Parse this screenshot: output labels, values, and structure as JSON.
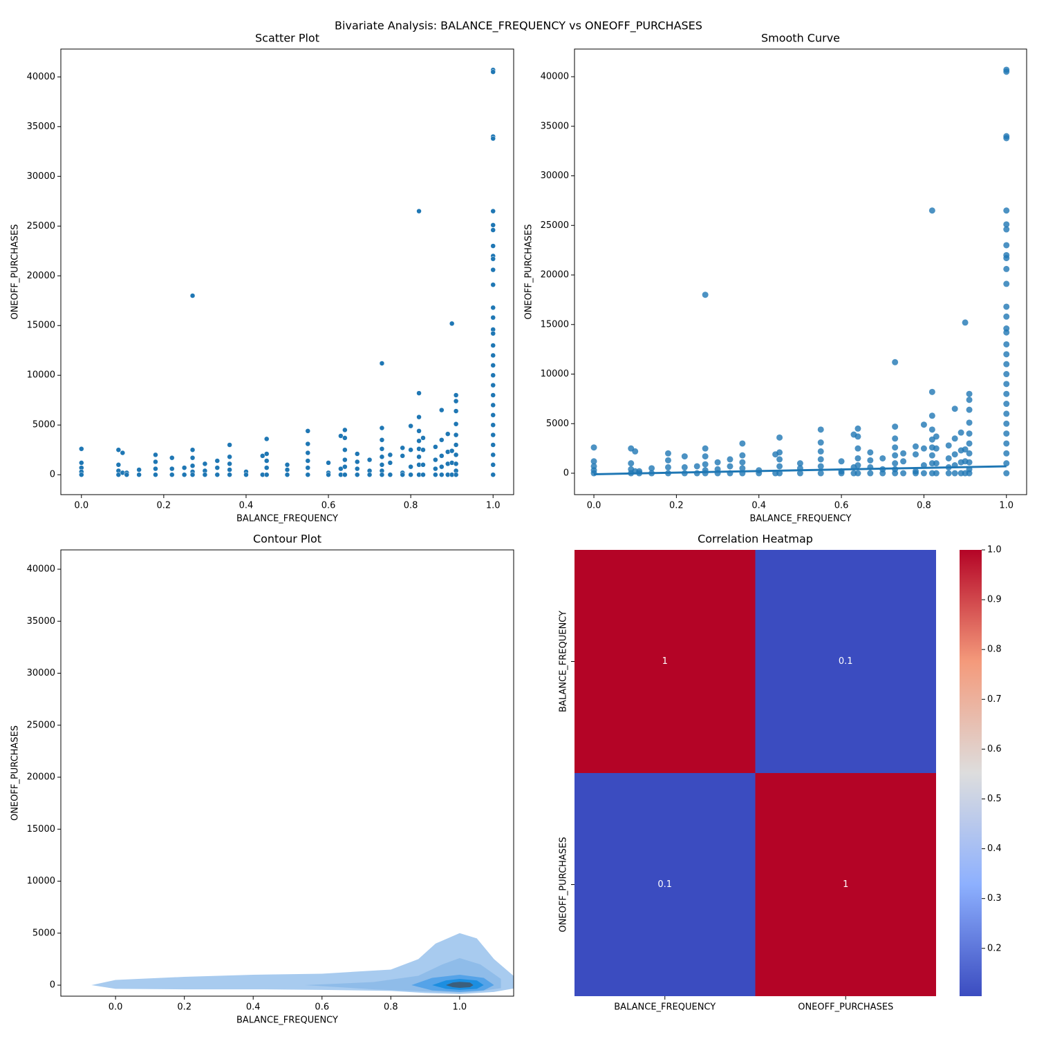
{
  "title": "Bivariate Analysis: BALANCE_FREQUENCY vs ONEOFF_PURCHASES",
  "chart_data": [
    {
      "type": "scatter",
      "title": "Scatter Plot",
      "x_label": "BALANCE_FREQUENCY",
      "y_label": "ONEOFF_PURCHASES",
      "xlim": [
        -0.05,
        1.05
      ],
      "ylim": [
        -2000,
        42800
      ],
      "xticks": [
        {
          "value": 0,
          "label": "0.0"
        },
        0.2,
        0.4,
        0.6,
        0.8,
        {
          "value": 1,
          "label": "1.0"
        }
      ],
      "yticks": [
        0,
        5000,
        10000,
        15000,
        20000,
        25000,
        30000,
        35000,
        40000
      ],
      "series": [
        {
          "kind": "scatter",
          "color": "#1f77b4",
          "x": [
            0,
            0,
            0,
            0,
            0,
            0.09,
            0.09,
            0.09,
            0.09,
            0.1,
            0.1,
            0.11,
            0.11,
            0.14,
            0.14,
            0.18,
            0.18,
            0.18,
            0.18,
            0.22,
            0.22,
            0.22,
            0.25,
            0.25,
            0.27,
            0.27,
            0.27,
            0.27,
            0.27,
            0.27,
            0.3,
            0.3,
            0.3,
            0.33,
            0.33,
            0.33,
            0.36,
            0.36,
            0.36,
            0.36,
            0.36,
            0.4,
            0.4,
            0.44,
            0.44,
            0.45,
            0.45,
            0.45,
            0.45,
            0.45,
            0.5,
            0.5,
            0.5,
            0.55,
            0.55,
            0.55,
            0.55,
            0.55,
            0.55,
            0.6,
            0.6,
            0.6,
            0.63,
            0.63,
            0.63,
            0.64,
            0.64,
            0.64,
            0.64,
            0.64,
            0.64,
            0.67,
            0.67,
            0.67,
            0.67,
            0.7,
            0.7,
            0.7,
            0.73,
            0.73,
            0.73,
            0.73,
            0.73,
            0.73,
            0.73,
            0.73,
            0.75,
            0.75,
            0.75,
            0.78,
            0.78,
            0.78,
            0.78,
            0.8,
            0.8,
            0.8,
            0.8,
            0.82,
            0.82,
            0.82,
            0.82,
            0.82,
            0.82,
            0.82,
            0.82,
            0.82,
            0.83,
            0.83,
            0.83,
            0.83,
            0.86,
            0.86,
            0.86,
            0.86,
            0.875,
            0.875,
            0.875,
            0.875,
            0.875,
            0.89,
            0.89,
            0.89,
            0.89,
            0.9,
            0.9,
            0.9,
            0.9,
            0.91,
            0.91,
            0.91,
            0.91,
            0.91,
            0.91,
            0.91,
            0.91,
            0.91,
            0.91,
            1,
            1,
            1,
            1,
            1,
            1,
            1,
            1,
            1,
            1,
            1,
            1,
            1,
            1,
            1,
            1,
            1,
            1,
            1,
            1,
            1,
            1,
            1,
            1,
            1,
            1,
            1,
            1,
            1,
            1
          ],
          "values": [
            2600,
            1200,
            700,
            300,
            0,
            2500,
            1000,
            400,
            0,
            2200,
            200,
            200,
            0,
            500,
            0,
            2000,
            1300,
            600,
            0,
            1700,
            600,
            0,
            700,
            0,
            18000,
            2500,
            1700,
            900,
            300,
            0,
            1100,
            400,
            0,
            1400,
            700,
            0,
            3000,
            1800,
            1100,
            500,
            0,
            300,
            0,
            1900,
            0,
            3600,
            2100,
            1400,
            700,
            0,
            1000,
            500,
            0,
            4400,
            3100,
            2200,
            1400,
            700,
            0,
            1200,
            200,
            0,
            3900,
            600,
            0,
            4500,
            3700,
            2500,
            1500,
            800,
            0,
            2100,
            1300,
            600,
            0,
            1500,
            400,
            0,
            11200,
            4700,
            3500,
            2600,
            1800,
            1000,
            400,
            0,
            2000,
            1200,
            0,
            2700,
            1900,
            200,
            0,
            4900,
            2500,
            800,
            0,
            26500,
            8200,
            5800,
            4400,
            3400,
            2600,
            1800,
            1000,
            0,
            3700,
            2500,
            1000,
            0,
            2800,
            1500,
            600,
            0,
            6500,
            3500,
            1900,
            800,
            0,
            4100,
            2300,
            1100,
            0,
            15200,
            2400,
            1200,
            0,
            8000,
            7400,
            6400,
            5100,
            4000,
            3000,
            2000,
            1100,
            400,
            0,
            40700,
            40500,
            34000,
            33800,
            26500,
            25100,
            24600,
            23000,
            22000,
            21700,
            20600,
            19100,
            16800,
            15800,
            14600,
            14200,
            13000,
            12000,
            11000,
            10000,
            9000,
            8000,
            7000,
            6000,
            5000,
            4000,
            3000,
            2000,
            1000,
            0
          ]
        }
      ]
    },
    {
      "type": "regplot",
      "title": "Smooth Curve",
      "x_label": "BALANCE_FREQUENCY",
      "y_label": "ONEOFF_PURCHASES",
      "xlim": [
        -0.047,
        1.049
      ],
      "ylim": [
        -2160,
        42790
      ],
      "xticks": [
        {
          "value": 0,
          "label": "0.0"
        },
        0.2,
        0.4,
        0.6,
        0.8,
        {
          "value": 1,
          "label": "1.0"
        }
      ],
      "yticks": [
        0,
        5000,
        10000,
        15000,
        20000,
        25000,
        30000,
        35000,
        40000
      ],
      "series": [
        {
          "kind": "scatter",
          "color": "#1f77b4",
          "x": [
            0,
            0,
            0,
            0,
            0,
            0.09,
            0.09,
            0.09,
            0.09,
            0.1,
            0.1,
            0.11,
            0.11,
            0.14,
            0.14,
            0.18,
            0.18,
            0.18,
            0.18,
            0.22,
            0.22,
            0.22,
            0.25,
            0.25,
            0.27,
            0.27,
            0.27,
            0.27,
            0.27,
            0.27,
            0.3,
            0.3,
            0.3,
            0.33,
            0.33,
            0.33,
            0.36,
            0.36,
            0.36,
            0.36,
            0.36,
            0.4,
            0.4,
            0.44,
            0.44,
            0.45,
            0.45,
            0.45,
            0.45,
            0.45,
            0.5,
            0.5,
            0.5,
            0.55,
            0.55,
            0.55,
            0.55,
            0.55,
            0.55,
            0.6,
            0.6,
            0.6,
            0.63,
            0.63,
            0.63,
            0.64,
            0.64,
            0.64,
            0.64,
            0.64,
            0.64,
            0.67,
            0.67,
            0.67,
            0.67,
            0.7,
            0.7,
            0.7,
            0.73,
            0.73,
            0.73,
            0.73,
            0.73,
            0.73,
            0.73,
            0.73,
            0.75,
            0.75,
            0.75,
            0.78,
            0.78,
            0.78,
            0.78,
            0.8,
            0.8,
            0.8,
            0.8,
            0.82,
            0.82,
            0.82,
            0.82,
            0.82,
            0.82,
            0.82,
            0.82,
            0.82,
            0.83,
            0.83,
            0.83,
            0.83,
            0.86,
            0.86,
            0.86,
            0.86,
            0.875,
            0.875,
            0.875,
            0.875,
            0.875,
            0.89,
            0.89,
            0.89,
            0.89,
            0.9,
            0.9,
            0.9,
            0.9,
            0.91,
            0.91,
            0.91,
            0.91,
            0.91,
            0.91,
            0.91,
            0.91,
            0.91,
            0.91,
            1,
            1,
            1,
            1,
            1,
            1,
            1,
            1,
            1,
            1,
            1,
            1,
            1,
            1,
            1,
            1,
            1,
            1,
            1,
            1,
            1,
            1,
            1,
            1,
            1,
            1,
            1,
            1,
            1,
            1
          ],
          "values": [
            2600,
            1200,
            700,
            300,
            0,
            2500,
            1000,
            400,
            0,
            2200,
            200,
            200,
            0,
            500,
            0,
            2000,
            1300,
            600,
            0,
            1700,
            600,
            0,
            700,
            0,
            18000,
            2500,
            1700,
            900,
            300,
            0,
            1100,
            400,
            0,
            1400,
            700,
            0,
            3000,
            1800,
            1100,
            500,
            0,
            300,
            0,
            1900,
            0,
            3600,
            2100,
            1400,
            700,
            0,
            1000,
            500,
            0,
            4400,
            3100,
            2200,
            1400,
            700,
            0,
            1200,
            200,
            0,
            3900,
            600,
            0,
            4500,
            3700,
            2500,
            1500,
            800,
            0,
            2100,
            1300,
            600,
            0,
            1500,
            400,
            0,
            11200,
            4700,
            3500,
            2600,
            1800,
            1000,
            400,
            0,
            2000,
            1200,
            0,
            2700,
            1900,
            200,
            0,
            4900,
            2500,
            800,
            0,
            26500,
            8200,
            5800,
            4400,
            3400,
            2600,
            1800,
            1000,
            0,
            3700,
            2500,
            1000,
            0,
            2800,
            1500,
            600,
            0,
            6500,
            3500,
            1900,
            800,
            0,
            4100,
            2300,
            1100,
            0,
            15200,
            2400,
            1200,
            0,
            8000,
            7400,
            6400,
            5100,
            4000,
            3000,
            2000,
            1100,
            400,
            0,
            40700,
            40500,
            34000,
            33800,
            26500,
            25100,
            24600,
            23000,
            22000,
            21700,
            20600,
            19100,
            16800,
            15800,
            14600,
            14200,
            13000,
            12000,
            11000,
            10000,
            9000,
            8000,
            7000,
            6000,
            5000,
            4000,
            3000,
            2000,
            1000,
            0
          ]
        },
        {
          "kind": "line",
          "color": "#1f77b4",
          "x": [
            0,
            1
          ],
          "values": [
            -100,
            700
          ]
        }
      ]
    },
    {
      "type": "contour",
      "title": "Contour Plot",
      "x_label": "BALANCE_FREQUENCY",
      "y_label": "ONEOFF_PURCHASES",
      "xlim": [
        -0.159,
        1.157
      ],
      "ylim": [
        -1060,
        41860
      ],
      "xticks": [
        {
          "value": 0,
          "label": "0.0"
        },
        0.2,
        0.4,
        0.6,
        0.8,
        {
          "value": 1,
          "label": "1.0"
        }
      ],
      "yticks": [
        0,
        5000,
        10000,
        15000,
        20000,
        25000,
        30000,
        35000,
        40000
      ],
      "series": [
        {
          "color": "#a8cbef",
          "x": [
            -0.07,
            0.0,
            0.2,
            0.4,
            0.6,
            0.8,
            0.88,
            0.93,
            1.0,
            1.05,
            1.1,
            1.16,
            1.16,
            1.1,
            1.0,
            0.9,
            0.8,
            0.6,
            0.4,
            0.2,
            0.0,
            -0.07
          ],
          "values": [
            0,
            500,
            800,
            1000,
            1100,
            1500,
            2500,
            4000,
            5000,
            4500,
            2500,
            800,
            -300,
            -650,
            -850,
            -750,
            -550,
            -450,
            -400,
            -400,
            -350,
            0
          ]
        },
        {
          "color": "#8fbce9",
          "x": [
            0.55,
            0.75,
            0.88,
            0.95,
            1.0,
            1.06,
            1.12,
            1.12,
            1.05,
            1.0,
            0.9,
            0.75,
            0.55
          ],
          "values": [
            0,
            300,
            900,
            2000,
            2600,
            2000,
            600,
            -300,
            -600,
            -700,
            -600,
            -400,
            0
          ]
        },
        {
          "color": "#55a3e8",
          "x": [
            0.86,
            0.92,
            1.0,
            1.07,
            1.1,
            1.07,
            1.0,
            0.92,
            0.86
          ],
          "values": [
            0,
            700,
            1000,
            700,
            0,
            -500,
            -650,
            -500,
            0
          ]
        },
        {
          "color": "#1c8ee0",
          "x": [
            0.92,
            0.96,
            1.0,
            1.05,
            1.07,
            1.05,
            1.0,
            0.96,
            0.92
          ],
          "values": [
            0,
            450,
            600,
            450,
            0,
            -350,
            -450,
            -350,
            0
          ]
        },
        {
          "color": "#3c5f7c",
          "x": [
            0.96,
            0.98,
            1.0,
            1.03,
            1.04,
            1.03,
            1.0,
            0.98,
            0.96
          ],
          "values": [
            0,
            250,
            320,
            250,
            0,
            -200,
            -260,
            -200,
            0
          ]
        }
      ]
    },
    {
      "type": "heatmap",
      "title": "Correlation Heatmap",
      "x_categories": [
        "BALANCE_FREQUENCY",
        "ONEOFF_PURCHASES"
      ],
      "y_categories": [
        "BALANCE_FREQUENCY",
        "ONEOFF_PURCHASES"
      ],
      "values": [
        [
          1,
          0.1
        ],
        [
          0.1,
          1
        ]
      ],
      "colormap": "coolwarm",
      "clim": [
        0.104,
        1
      ],
      "cticks": [
        0.2,
        0.3,
        0.4,
        0.5,
        0.6,
        0.7,
        0.8,
        0.9,
        {
          "value": 1,
          "label": "1.0"
        }
      ]
    }
  ]
}
